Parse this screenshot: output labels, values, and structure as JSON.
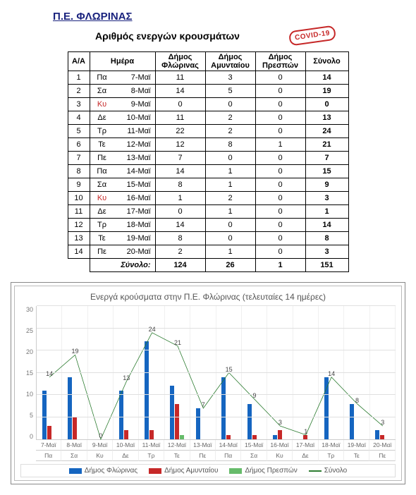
{
  "header": {
    "title": "Π.Ε. ΦΛΩΡΙΝΑΣ",
    "subtitle": "Αριθμός ενεργών κρουσμάτων",
    "stamp": "COVID-19"
  },
  "table": {
    "headers": {
      "aa": "Α/Α",
      "day": "Ημέρα",
      "florina": "Δήμος Φλώρινας",
      "amyntaio": "Δήμος Αμυνταίου",
      "prespes": "Δήμος Πρεσπών",
      "total": "Σύνολο"
    },
    "rows": [
      {
        "aa": 1,
        "day": "Πα",
        "date": "7-Μαϊ",
        "fl": 11,
        "am": 3,
        "pr": 0,
        "sum": 14,
        "sun": false
      },
      {
        "aa": 2,
        "day": "Σα",
        "date": "8-Μαϊ",
        "fl": 14,
        "am": 5,
        "pr": 0,
        "sum": 19,
        "sun": false
      },
      {
        "aa": 3,
        "day": "Κυ",
        "date": "9-Μαϊ",
        "fl": 0,
        "am": 0,
        "pr": 0,
        "sum": 0,
        "sun": true
      },
      {
        "aa": 4,
        "day": "Δε",
        "date": "10-Μαϊ",
        "fl": 11,
        "am": 2,
        "pr": 0,
        "sum": 13,
        "sun": false
      },
      {
        "aa": 5,
        "day": "Τρ",
        "date": "11-Μαϊ",
        "fl": 22,
        "am": 2,
        "pr": 0,
        "sum": 24,
        "sun": false
      },
      {
        "aa": 6,
        "day": "Τε",
        "date": "12-Μαϊ",
        "fl": 12,
        "am": 8,
        "pr": 1,
        "sum": 21,
        "sun": false
      },
      {
        "aa": 7,
        "day": "Πε",
        "date": "13-Μαϊ",
        "fl": 7,
        "am": 0,
        "pr": 0,
        "sum": 7,
        "sun": false
      },
      {
        "aa": 8,
        "day": "Πα",
        "date": "14-Μαϊ",
        "fl": 14,
        "am": 1,
        "pr": 0,
        "sum": 15,
        "sun": false
      },
      {
        "aa": 9,
        "day": "Σα",
        "date": "15-Μαϊ",
        "fl": 8,
        "am": 1,
        "pr": 0,
        "sum": 9,
        "sun": false
      },
      {
        "aa": 10,
        "day": "Κυ",
        "date": "16-Μαϊ",
        "fl": 1,
        "am": 2,
        "pr": 0,
        "sum": 3,
        "sun": true
      },
      {
        "aa": 11,
        "day": "Δε",
        "date": "17-Μαϊ",
        "fl": 0,
        "am": 1,
        "pr": 0,
        "sum": 1,
        "sun": false
      },
      {
        "aa": 12,
        "day": "Τρ",
        "date": "18-Μαϊ",
        "fl": 14,
        "am": 0,
        "pr": 0,
        "sum": 14,
        "sun": false
      },
      {
        "aa": 13,
        "day": "Τε",
        "date": "19-Μαϊ",
        "fl": 8,
        "am": 0,
        "pr": 0,
        "sum": 8,
        "sun": false
      },
      {
        "aa": 14,
        "day": "Πε",
        "date": "20-Μαϊ",
        "fl": 2,
        "am": 1,
        "pr": 0,
        "sum": 3,
        "sun": false
      }
    ],
    "totals": {
      "label": "Σύνολο:",
      "fl": 124,
      "am": 26,
      "pr": 1,
      "sum": 151
    }
  },
  "chart": {
    "title": "Ενεργά κρούσματα στην Π.Ε. Φλώρινας (τελευταίες 14 ημέρες)",
    "ymax": 30,
    "ystep": 5,
    "colors": {
      "florina": "#1565c0",
      "amyntaio": "#c62828",
      "prespes": "#66bb6a",
      "total_line": "#2e7d32",
      "grid": "#e0e0e0",
      "bg": "#ffffff"
    },
    "legend": {
      "florina": "Δήμος Φλώρινας",
      "amyntaio": "Δήμος Αμυνταίου",
      "prespes": "Δήμος Πρεσπών",
      "total": "Σύνολο"
    }
  }
}
